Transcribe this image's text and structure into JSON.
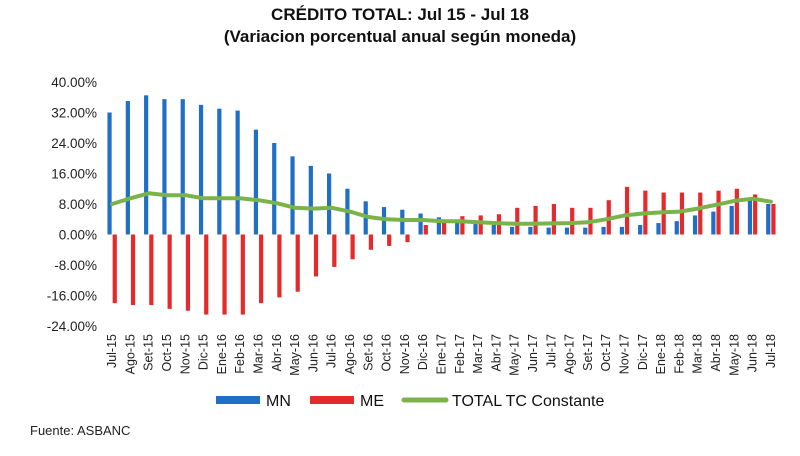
{
  "title": "CRÉDITO TOTAL: Jul 15 - Jul 18",
  "subtitle": "(Variacion porcentual anual según moneda)",
  "source": "Fuente: ASBANC",
  "chart_data": {
    "type": "bar",
    "title": "CRÉDITO TOTAL: Jul 15 - Jul 18",
    "subtitle": "(Variacion porcentual anual según moneda)",
    "xlabel": "",
    "ylabel": "",
    "ylim": [
      -24,
      40
    ],
    "yticks": [
      40,
      32,
      24,
      16,
      8,
      0,
      -8,
      -16,
      -24
    ],
    "ytick_labels": [
      "40.00%",
      "32.00%",
      "24.00%",
      "16.00%",
      "8.00%",
      "0.00%",
      "-8.00%",
      "-16.00%",
      "-24.00%"
    ],
    "grid": false,
    "legend_position": "bottom",
    "categories": [
      "Jul-15",
      "Ago-15",
      "Set-15",
      "Oct-15",
      "Nov-15",
      "Dic-15",
      "Ene-16",
      "Feb-16",
      "Mar-16",
      "Abr-16",
      "May-16",
      "Jun-16",
      "Jul-16",
      "Ago-16",
      "Set-16",
      "Oct-16",
      "Nov-16",
      "Dic-16",
      "Ene-17",
      "Feb-17",
      "Mar-17",
      "Abr-17",
      "May-17",
      "Jun-17",
      "Jul-17",
      "Ago-17",
      "Set-17",
      "Oct-17",
      "Nov-17",
      "Dic-17",
      "Ene-18",
      "Feb-18",
      "Mar-18",
      "Abr-18",
      "May-18",
      "Jun-18",
      "Jul-18"
    ],
    "series": [
      {
        "name": "MN",
        "type": "bar",
        "color": "#1f6fc5",
        "values": [
          32,
          35,
          36.5,
          35.5,
          35.5,
          34,
          33,
          32.5,
          27.5,
          24,
          20.5,
          18,
          16,
          12,
          8.7,
          7.2,
          6.5,
          5.5,
          4.5,
          3.5,
          3,
          2.5,
          2,
          2,
          1.8,
          1.8,
          1.8,
          2,
          2,
          2.5,
          3,
          3.5,
          5,
          6,
          7.5,
          9.5,
          8
        ]
      },
      {
        "name": "ME",
        "type": "bar",
        "color": "#e32b2b",
        "values": [
          -18,
          -18.5,
          -18.5,
          -19.5,
          -20,
          -21,
          -21,
          -21,
          -18,
          -16.5,
          -15,
          -11,
          -8.5,
          -6.5,
          -4,
          -3,
          -2,
          2.5,
          3.2,
          4.8,
          5,
          5.3,
          7,
          7.5,
          8,
          7,
          7,
          9,
          12.5,
          11.5,
          11,
          11,
          11,
          11.5,
          12,
          10.5,
          8
        ]
      },
      {
        "name": "TOTAL TC Constante",
        "type": "line",
        "color": "#79b34a",
        "values": [
          8,
          9.5,
          10.8,
          10.3,
          10.3,
          9.5,
          9.5,
          9.5,
          9,
          8.2,
          7,
          6.8,
          7,
          6,
          4.6,
          4,
          3.8,
          3.8,
          3.5,
          3.5,
          3.2,
          3,
          2.8,
          2.8,
          2.9,
          3,
          3.2,
          4,
          5,
          5.5,
          5.8,
          6,
          6.8,
          7.8,
          8.8,
          9.4,
          8.6
        ]
      }
    ]
  }
}
